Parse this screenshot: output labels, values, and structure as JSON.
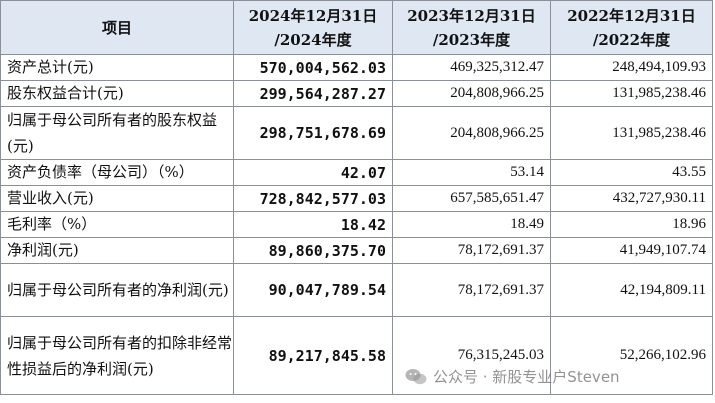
{
  "table": {
    "headers": [
      "项目",
      "2024年12月31日\n/2024年度",
      "2023年12月31日\n/2023年度",
      "2022年12月31日\n/2022年度"
    ],
    "rows": [
      {
        "label": "资产总计(元)",
        "v2024": "570,004,562.03",
        "v2023": "469,325,312.47",
        "v2022": "248,494,109.93"
      },
      {
        "label": "股东权益合计(元)",
        "v2024": "299,564,287.27",
        "v2023": "204,808,966.25",
        "v2022": "131,985,238.46"
      },
      {
        "label": "归属于母公司所有者的股东权益(元)",
        "v2024": "298,751,678.69",
        "v2023": "204,808,966.25",
        "v2022": "131,985,238.46"
      },
      {
        "label": "资产负债率（母公司）（%）",
        "v2024": "42.07",
        "v2023": "53.14",
        "v2022": "43.55"
      },
      {
        "label": "营业收入(元)",
        "v2024": "728,842,577.03",
        "v2023": "657,585,651.47",
        "v2022": "432,727,930.11"
      },
      {
        "label": "毛利率（%）",
        "v2024": "18.42",
        "v2023": "18.49",
        "v2022": "18.96"
      },
      {
        "label": "净利润(元)",
        "v2024": "89,860,375.70",
        "v2023": "78,172,691.37",
        "v2022": "41,949,107.74"
      },
      {
        "label": "归属于母公司所有者的净利润(元)",
        "v2024": "90,047,789.54",
        "v2023": "78,172,691.37",
        "v2022": "42,194,809.11"
      },
      {
        "label": "归属于母公司所有者的扣除非经常性损益后的净利润(元)",
        "v2024": "89,217,845.58",
        "v2023": "76,315,245.03",
        "v2022": "52,266,102.96"
      }
    ]
  },
  "watermark": {
    "text": "公众号 · 新股专业户Steven",
    "icon": "wechat-icon"
  }
}
